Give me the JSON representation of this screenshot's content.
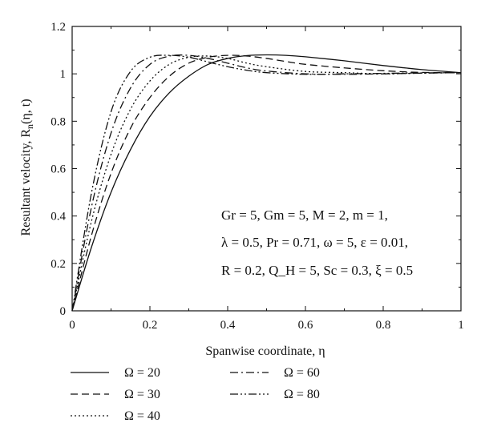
{
  "chart_data": {
    "type": "line",
    "xlabel": "Spanwise coordinate, η",
    "ylabel": "Resultant velocity, R",
    "ylabel_sub": "n",
    "ylabel_tail": "(η, t)",
    "xlim": [
      0,
      1
    ],
    "ylim": [
      0,
      1.2
    ],
    "x_ticks": [
      "0",
      "0.2",
      "0.4",
      "0.6",
      "0.8",
      "1"
    ],
    "y_ticks": [
      "0",
      "0.2",
      "0.4",
      "0.6",
      "0.8",
      "1",
      "1.2"
    ],
    "grid": false,
    "legend_position": "bottom",
    "annotation_lines": [
      "Gr = 5, Gm = 5, M = 2, m = 1,",
      "λ = 0.5, Pr = 0.71, ω = 5, ε = 0.01,",
      "R = 0.2, Q_H = 5, Sc = 0.3, ξ = 0.5"
    ],
    "series": [
      {
        "name": "Ω = 20",
        "dash": "solid",
        "x": [
          0,
          0.05,
          0.1,
          0.15,
          0.2,
          0.25,
          0.3,
          0.35,
          0.4,
          0.45,
          0.5,
          0.55,
          0.6,
          0.7,
          0.8,
          0.9,
          1.0
        ],
        "y": [
          0,
          0.27,
          0.5,
          0.68,
          0.82,
          0.92,
          0.99,
          1.04,
          1.065,
          1.077,
          1.08,
          1.078,
          1.072,
          1.055,
          1.035,
          1.018,
          1.005
        ]
      },
      {
        "name": "Ω = 30",
        "dash": "dashed",
        "x": [
          0,
          0.05,
          0.1,
          0.15,
          0.2,
          0.25,
          0.3,
          0.35,
          0.4,
          0.45,
          0.5,
          0.55,
          0.6,
          0.7,
          0.8,
          0.9,
          1.0
        ],
        "y": [
          0,
          0.32,
          0.58,
          0.77,
          0.9,
          0.99,
          1.045,
          1.07,
          1.078,
          1.075,
          1.065,
          1.052,
          1.04,
          1.025,
          1.013,
          1.006,
          1.005
        ]
      },
      {
        "name": "Ω = 40",
        "dash": "dotted",
        "x": [
          0,
          0.05,
          0.1,
          0.15,
          0.2,
          0.25,
          0.3,
          0.35,
          0.4,
          0.45,
          0.5,
          0.6,
          0.7,
          0.8,
          0.9,
          1.0
        ],
        "y": [
          0,
          0.38,
          0.66,
          0.85,
          0.97,
          1.04,
          1.07,
          1.075,
          1.065,
          1.045,
          1.03,
          1.01,
          1.005,
          1.0,
          1.003,
          1.005
        ]
      },
      {
        "name": "Ω = 60",
        "dash": "dashdot",
        "x": [
          0,
          0.05,
          0.1,
          0.15,
          0.2,
          0.25,
          0.3,
          0.35,
          0.4,
          0.45,
          0.5,
          0.6,
          0.7,
          0.8,
          0.9,
          1.0
        ],
        "y": [
          0,
          0.44,
          0.75,
          0.94,
          1.04,
          1.075,
          1.078,
          1.065,
          1.045,
          1.025,
          1.012,
          1.0,
          0.998,
          1.0,
          1.003,
          1.005
        ]
      },
      {
        "name": "Ω = 80",
        "dash": "dashdotdot",
        "x": [
          0,
          0.05,
          0.1,
          0.15,
          0.2,
          0.25,
          0.3,
          0.35,
          0.4,
          0.45,
          0.5,
          0.6,
          0.7,
          0.8,
          0.9,
          1.0
        ],
        "y": [
          0,
          0.5,
          0.84,
          1.01,
          1.07,
          1.078,
          1.07,
          1.05,
          1.03,
          1.015,
          1.005,
          0.998,
          1.0,
          1.002,
          1.004,
          1.005
        ]
      }
    ]
  }
}
